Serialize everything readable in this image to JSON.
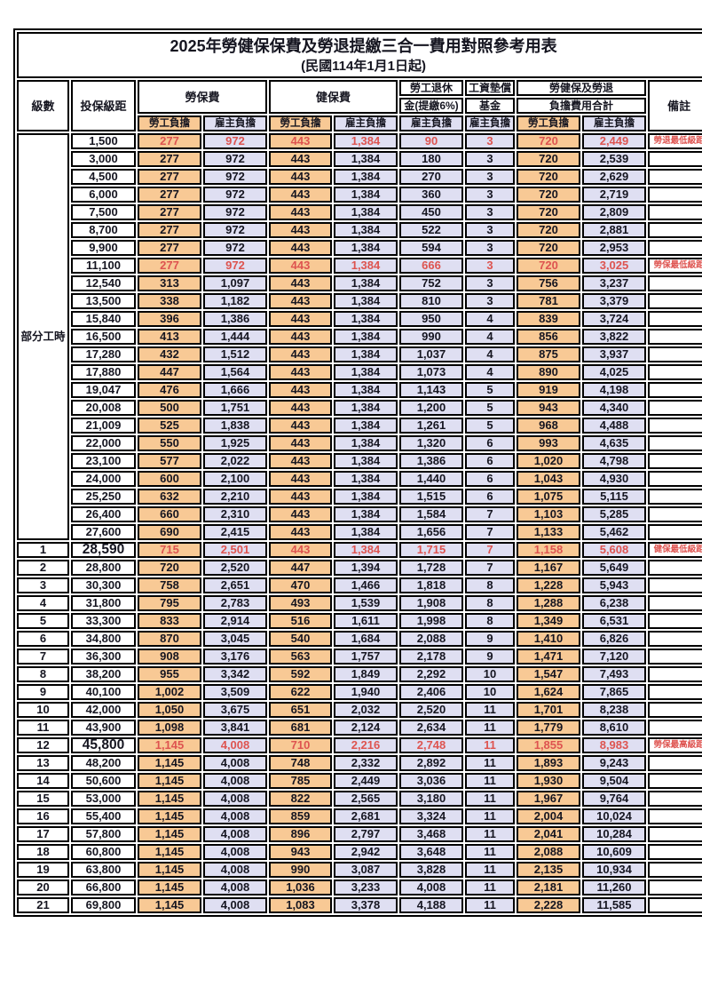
{
  "title": "2025年勞健保保費及勞退提繳三合一費用對照參考用表",
  "subtitle": "(民國114年1月1日起)",
  "colors": {
    "worker_bg": "#F8C995",
    "employer_bg": "#DFDFF2",
    "red_text": "#DE5450"
  },
  "headers": {
    "level": "級數",
    "bracket": "投保級距",
    "labor_fee": "勞保費",
    "health_fee": "健保費",
    "pension_line1": "勞工退休",
    "pension_line2": "金(提繳6%)",
    "fund_line1": "工資墊償",
    "fund_line2": "基金",
    "total_line1": "勞健保及勞退",
    "total_line2": "負擔費用合計",
    "note": "備註",
    "worker": "勞工負擔",
    "employer": "雇主負擔"
  },
  "part_time_label": "部分工時",
  "rows": [
    {
      "level": "",
      "bracket": "1,500",
      "labor_w": "277",
      "labor_e": "972",
      "health_w": "443",
      "health_e": "1,384",
      "pension_e": "90",
      "fund_e": "3",
      "total_w": "720",
      "total_e": "2,449",
      "note": "勞退最低級距",
      "red": true,
      "big": false
    },
    {
      "level": "",
      "bracket": "3,000",
      "labor_w": "277",
      "labor_e": "972",
      "health_w": "443",
      "health_e": "1,384",
      "pension_e": "180",
      "fund_e": "3",
      "total_w": "720",
      "total_e": "2,539",
      "note": "",
      "red": false,
      "big": false
    },
    {
      "level": "",
      "bracket": "4,500",
      "labor_w": "277",
      "labor_e": "972",
      "health_w": "443",
      "health_e": "1,384",
      "pension_e": "270",
      "fund_e": "3",
      "total_w": "720",
      "total_e": "2,629",
      "note": "",
      "red": false,
      "big": false
    },
    {
      "level": "",
      "bracket": "6,000",
      "labor_w": "277",
      "labor_e": "972",
      "health_w": "443",
      "health_e": "1,384",
      "pension_e": "360",
      "fund_e": "3",
      "total_w": "720",
      "total_e": "2,719",
      "note": "",
      "red": false,
      "big": false
    },
    {
      "level": "",
      "bracket": "7,500",
      "labor_w": "277",
      "labor_e": "972",
      "health_w": "443",
      "health_e": "1,384",
      "pension_e": "450",
      "fund_e": "3",
      "total_w": "720",
      "total_e": "2,809",
      "note": "",
      "red": false,
      "big": false
    },
    {
      "level": "",
      "bracket": "8,700",
      "labor_w": "277",
      "labor_e": "972",
      "health_w": "443",
      "health_e": "1,384",
      "pension_e": "522",
      "fund_e": "3",
      "total_w": "720",
      "total_e": "2,881",
      "note": "",
      "red": false,
      "big": false
    },
    {
      "level": "",
      "bracket": "9,900",
      "labor_w": "277",
      "labor_e": "972",
      "health_w": "443",
      "health_e": "1,384",
      "pension_e": "594",
      "fund_e": "3",
      "total_w": "720",
      "total_e": "2,953",
      "note": "",
      "red": false,
      "big": false
    },
    {
      "level": "",
      "bracket": "11,100",
      "labor_w": "277",
      "labor_e": "972",
      "health_w": "443",
      "health_e": "1,384",
      "pension_e": "666",
      "fund_e": "3",
      "total_w": "720",
      "total_e": "3,025",
      "note": "勞保最低級距",
      "red": true,
      "big": false
    },
    {
      "level": "",
      "bracket": "12,540",
      "labor_w": "313",
      "labor_e": "1,097",
      "health_w": "443",
      "health_e": "1,384",
      "pension_e": "752",
      "fund_e": "3",
      "total_w": "756",
      "total_e": "3,237",
      "note": "",
      "red": false,
      "big": false
    },
    {
      "level": "",
      "bracket": "13,500",
      "labor_w": "338",
      "labor_e": "1,182",
      "health_w": "443",
      "health_e": "1,384",
      "pension_e": "810",
      "fund_e": "3",
      "total_w": "781",
      "total_e": "3,379",
      "note": "",
      "red": false,
      "big": false
    },
    {
      "level": "",
      "bracket": "15,840",
      "labor_w": "396",
      "labor_e": "1,386",
      "health_w": "443",
      "health_e": "1,384",
      "pension_e": "950",
      "fund_e": "4",
      "total_w": "839",
      "total_e": "3,724",
      "note": "",
      "red": false,
      "big": false
    },
    {
      "level": "",
      "bracket": "16,500",
      "labor_w": "413",
      "labor_e": "1,444",
      "health_w": "443",
      "health_e": "1,384",
      "pension_e": "990",
      "fund_e": "4",
      "total_w": "856",
      "total_e": "3,822",
      "note": "",
      "red": false,
      "big": false
    },
    {
      "level": "",
      "bracket": "17,280",
      "labor_w": "432",
      "labor_e": "1,512",
      "health_w": "443",
      "health_e": "1,384",
      "pension_e": "1,037",
      "fund_e": "4",
      "total_w": "875",
      "total_e": "3,937",
      "note": "",
      "red": false,
      "big": false
    },
    {
      "level": "",
      "bracket": "17,880",
      "labor_w": "447",
      "labor_e": "1,564",
      "health_w": "443",
      "health_e": "1,384",
      "pension_e": "1,073",
      "fund_e": "4",
      "total_w": "890",
      "total_e": "4,025",
      "note": "",
      "red": false,
      "big": false
    },
    {
      "level": "",
      "bracket": "19,047",
      "labor_w": "476",
      "labor_e": "1,666",
      "health_w": "443",
      "health_e": "1,384",
      "pension_e": "1,143",
      "fund_e": "5",
      "total_w": "919",
      "total_e": "4,198",
      "note": "",
      "red": false,
      "big": false
    },
    {
      "level": "",
      "bracket": "20,008",
      "labor_w": "500",
      "labor_e": "1,751",
      "health_w": "443",
      "health_e": "1,384",
      "pension_e": "1,200",
      "fund_e": "5",
      "total_w": "943",
      "total_e": "4,340",
      "note": "",
      "red": false,
      "big": false
    },
    {
      "level": "",
      "bracket": "21,009",
      "labor_w": "525",
      "labor_e": "1,838",
      "health_w": "443",
      "health_e": "1,384",
      "pension_e": "1,261",
      "fund_e": "5",
      "total_w": "968",
      "total_e": "4,488",
      "note": "",
      "red": false,
      "big": false
    },
    {
      "level": "",
      "bracket": "22,000",
      "labor_w": "550",
      "labor_e": "1,925",
      "health_w": "443",
      "health_e": "1,384",
      "pension_e": "1,320",
      "fund_e": "6",
      "total_w": "993",
      "total_e": "4,635",
      "note": "",
      "red": false,
      "big": false
    },
    {
      "level": "",
      "bracket": "23,100",
      "labor_w": "577",
      "labor_e": "2,022",
      "health_w": "443",
      "health_e": "1,384",
      "pension_e": "1,386",
      "fund_e": "6",
      "total_w": "1,020",
      "total_e": "4,798",
      "note": "",
      "red": false,
      "big": false
    },
    {
      "level": "",
      "bracket": "24,000",
      "labor_w": "600",
      "labor_e": "2,100",
      "health_w": "443",
      "health_e": "1,384",
      "pension_e": "1,440",
      "fund_e": "6",
      "total_w": "1,043",
      "total_e": "4,930",
      "note": "",
      "red": false,
      "big": false
    },
    {
      "level": "",
      "bracket": "25,250",
      "labor_w": "632",
      "labor_e": "2,210",
      "health_w": "443",
      "health_e": "1,384",
      "pension_e": "1,515",
      "fund_e": "6",
      "total_w": "1,075",
      "total_e": "5,115",
      "note": "",
      "red": false,
      "big": false
    },
    {
      "level": "",
      "bracket": "26,400",
      "labor_w": "660",
      "labor_e": "2,310",
      "health_w": "443",
      "health_e": "1,384",
      "pension_e": "1,584",
      "fund_e": "7",
      "total_w": "1,103",
      "total_e": "5,285",
      "note": "",
      "red": false,
      "big": false
    },
    {
      "level": "",
      "bracket": "27,600",
      "labor_w": "690",
      "labor_e": "2,415",
      "health_w": "443",
      "health_e": "1,384",
      "pension_e": "1,656",
      "fund_e": "7",
      "total_w": "1,133",
      "total_e": "5,462",
      "note": "",
      "red": false,
      "big": false
    },
    {
      "level": "1",
      "bracket": "28,590",
      "labor_w": "715",
      "labor_e": "2,501",
      "health_w": "443",
      "health_e": "1,384",
      "pension_e": "1,715",
      "fund_e": "7",
      "total_w": "1,158",
      "total_e": "5,608",
      "note": "健保最低級距",
      "red": true,
      "big": true
    },
    {
      "level": "2",
      "bracket": "28,800",
      "labor_w": "720",
      "labor_e": "2,520",
      "health_w": "447",
      "health_e": "1,394",
      "pension_e": "1,728",
      "fund_e": "7",
      "total_w": "1,167",
      "total_e": "5,649",
      "note": "",
      "red": false,
      "big": false
    },
    {
      "level": "3",
      "bracket": "30,300",
      "labor_w": "758",
      "labor_e": "2,651",
      "health_w": "470",
      "health_e": "1,466",
      "pension_e": "1,818",
      "fund_e": "8",
      "total_w": "1,228",
      "total_e": "5,943",
      "note": "",
      "red": false,
      "big": false
    },
    {
      "level": "4",
      "bracket": "31,800",
      "labor_w": "795",
      "labor_e": "2,783",
      "health_w": "493",
      "health_e": "1,539",
      "pension_e": "1,908",
      "fund_e": "8",
      "total_w": "1,288",
      "total_e": "6,238",
      "note": "",
      "red": false,
      "big": false
    },
    {
      "level": "5",
      "bracket": "33,300",
      "labor_w": "833",
      "labor_e": "2,914",
      "health_w": "516",
      "health_e": "1,611",
      "pension_e": "1,998",
      "fund_e": "8",
      "total_w": "1,349",
      "total_e": "6,531",
      "note": "",
      "red": false,
      "big": false
    },
    {
      "level": "6",
      "bracket": "34,800",
      "labor_w": "870",
      "labor_e": "3,045",
      "health_w": "540",
      "health_e": "1,684",
      "pension_e": "2,088",
      "fund_e": "9",
      "total_w": "1,410",
      "total_e": "6,826",
      "note": "",
      "red": false,
      "big": false
    },
    {
      "level": "7",
      "bracket": "36,300",
      "labor_w": "908",
      "labor_e": "3,176",
      "health_w": "563",
      "health_e": "1,757",
      "pension_e": "2,178",
      "fund_e": "9",
      "total_w": "1,471",
      "total_e": "7,120",
      "note": "",
      "red": false,
      "big": false
    },
    {
      "level": "8",
      "bracket": "38,200",
      "labor_w": "955",
      "labor_e": "3,342",
      "health_w": "592",
      "health_e": "1,849",
      "pension_e": "2,292",
      "fund_e": "10",
      "total_w": "1,547",
      "total_e": "7,493",
      "note": "",
      "red": false,
      "big": false
    },
    {
      "level": "9",
      "bracket": "40,100",
      "labor_w": "1,002",
      "labor_e": "3,509",
      "health_w": "622",
      "health_e": "1,940",
      "pension_e": "2,406",
      "fund_e": "10",
      "total_w": "1,624",
      "total_e": "7,865",
      "note": "",
      "red": false,
      "big": false
    },
    {
      "level": "10",
      "bracket": "42,000",
      "labor_w": "1,050",
      "labor_e": "3,675",
      "health_w": "651",
      "health_e": "2,032",
      "pension_e": "2,520",
      "fund_e": "11",
      "total_w": "1,701",
      "total_e": "8,238",
      "note": "",
      "red": false,
      "big": false
    },
    {
      "level": "11",
      "bracket": "43,900",
      "labor_w": "1,098",
      "labor_e": "3,841",
      "health_w": "681",
      "health_e": "2,124",
      "pension_e": "2,634",
      "fund_e": "11",
      "total_w": "1,779",
      "total_e": "8,610",
      "note": "",
      "red": false,
      "big": false
    },
    {
      "level": "12",
      "bracket": "45,800",
      "labor_w": "1,145",
      "labor_e": "4,008",
      "health_w": "710",
      "health_e": "2,216",
      "pension_e": "2,748",
      "fund_e": "11",
      "total_w": "1,855",
      "total_e": "8,983",
      "note": "勞保最高級距",
      "red": true,
      "big": true
    },
    {
      "level": "13",
      "bracket": "48,200",
      "labor_w": "1,145",
      "labor_e": "4,008",
      "health_w": "748",
      "health_e": "2,332",
      "pension_e": "2,892",
      "fund_e": "11",
      "total_w": "1,893",
      "total_e": "9,243",
      "note": "",
      "red": false,
      "big": false
    },
    {
      "level": "14",
      "bracket": "50,600",
      "labor_w": "1,145",
      "labor_e": "4,008",
      "health_w": "785",
      "health_e": "2,449",
      "pension_e": "3,036",
      "fund_e": "11",
      "total_w": "1,930",
      "total_e": "9,504",
      "note": "",
      "red": false,
      "big": false
    },
    {
      "level": "15",
      "bracket": "53,000",
      "labor_w": "1,145",
      "labor_e": "4,008",
      "health_w": "822",
      "health_e": "2,565",
      "pension_e": "3,180",
      "fund_e": "11",
      "total_w": "1,967",
      "total_e": "9,764",
      "note": "",
      "red": false,
      "big": false
    },
    {
      "level": "16",
      "bracket": "55,400",
      "labor_w": "1,145",
      "labor_e": "4,008",
      "health_w": "859",
      "health_e": "2,681",
      "pension_e": "3,324",
      "fund_e": "11",
      "total_w": "2,004",
      "total_e": "10,024",
      "note": "",
      "red": false,
      "big": false
    },
    {
      "level": "17",
      "bracket": "57,800",
      "labor_w": "1,145",
      "labor_e": "4,008",
      "health_w": "896",
      "health_e": "2,797",
      "pension_e": "3,468",
      "fund_e": "11",
      "total_w": "2,041",
      "total_e": "10,284",
      "note": "",
      "red": false,
      "big": false
    },
    {
      "level": "18",
      "bracket": "60,800",
      "labor_w": "1,145",
      "labor_e": "4,008",
      "health_w": "943",
      "health_e": "2,942",
      "pension_e": "3,648",
      "fund_e": "11",
      "total_w": "2,088",
      "total_e": "10,609",
      "note": "",
      "red": false,
      "big": false
    },
    {
      "level": "19",
      "bracket": "63,800",
      "labor_w": "1,145",
      "labor_e": "4,008",
      "health_w": "990",
      "health_e": "3,087",
      "pension_e": "3,828",
      "fund_e": "11",
      "total_w": "2,135",
      "total_e": "10,934",
      "note": "",
      "red": false,
      "big": false
    },
    {
      "level": "20",
      "bracket": "66,800",
      "labor_w": "1,145",
      "labor_e": "4,008",
      "health_w": "1,036",
      "health_e": "3,233",
      "pension_e": "4,008",
      "fund_e": "11",
      "total_w": "2,181",
      "total_e": "11,260",
      "note": "",
      "red": false,
      "big": false
    },
    {
      "level": "21",
      "bracket": "69,800",
      "labor_w": "1,145",
      "labor_e": "4,008",
      "health_w": "1,083",
      "health_e": "3,378",
      "pension_e": "4,188",
      "fund_e": "11",
      "total_w": "2,228",
      "total_e": "11,585",
      "note": "",
      "red": false,
      "big": false
    }
  ]
}
